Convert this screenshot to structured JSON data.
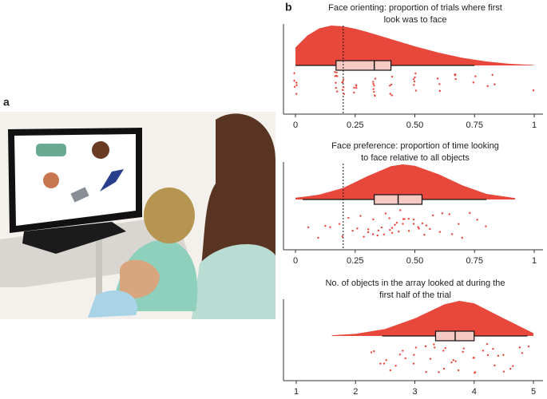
{
  "panel_labels": [
    "a",
    "b"
  ],
  "chart_data": [
    {
      "type": "raincloud",
      "color": "#e8473b",
      "title": [
        "Face orienting: proportion of trials where first",
        "look was to face"
      ],
      "xlim": [
        0,
        1
      ],
      "xticks": [
        0,
        0.25,
        {
          "value": 0.5,
          "label": "0.50"
        },
        0.75,
        1
      ],
      "reference_line": 0.2,
      "density": {
        "x": [
          0,
          0.05,
          0.1,
          0.15,
          0.2,
          0.25,
          0.3,
          0.4,
          0.5,
          0.6,
          0.7,
          0.8,
          0.9,
          1
        ],
        "y": [
          0.45,
          0.75,
          0.93,
          1,
          0.98,
          0.92,
          0.84,
          0.66,
          0.48,
          0.32,
          0.19,
          0.1,
          0.04,
          0.01
        ]
      },
      "box": {
        "whisker_low": 0,
        "q1": 0.17,
        "median": 0.33,
        "q3": 0.4,
        "whisker_high": 0.75
      },
      "points": [
        0,
        0,
        0,
        0,
        0,
        0,
        0.17,
        0.17,
        0.17,
        0.17,
        0.17,
        0.17,
        0.17,
        0.17,
        0.2,
        0.2,
        0.2,
        0.2,
        0.2,
        0.2,
        0.25,
        0.25,
        0.25,
        0.25,
        0.25,
        0.33,
        0.33,
        0.33,
        0.33,
        0.33,
        0.33,
        0.33,
        0.33,
        0.4,
        0.4,
        0.4,
        0.4,
        0.4,
        0.5,
        0.5,
        0.5,
        0.5,
        0.5,
        0.5,
        0.6,
        0.6,
        0.6,
        0.67,
        0.67,
        0.67,
        0.67,
        0.75,
        0.75,
        0.8,
        0.83,
        0.83,
        1
      ]
    },
    {
      "type": "raincloud",
      "color": "#e8473b",
      "title": [
        "Face preference: proportion of time looking",
        "to face relative to all objects"
      ],
      "xlim": [
        0,
        1
      ],
      "xticks": [
        0,
        0.25,
        {
          "value": 0.5,
          "label": "0.50"
        },
        0.75,
        1
      ],
      "reference_line": 0.2,
      "density": {
        "x": [
          0,
          0.05,
          0.1,
          0.2,
          0.3,
          0.4,
          0.45,
          0.5,
          0.6,
          0.7,
          0.8,
          0.92
        ],
        "y": [
          0.05,
          0.09,
          0.14,
          0.33,
          0.66,
          0.95,
          1,
          0.96,
          0.72,
          0.4,
          0.16,
          0.04
        ]
      },
      "box": {
        "whisker_low": 0.03,
        "q1": 0.33,
        "median": 0.43,
        "q3": 0.53,
        "whisker_high": 0.8
      },
      "points": [
        0.05,
        0.1,
        0.12,
        0.15,
        0.18,
        0.2,
        0.22,
        0.24,
        0.26,
        0.27,
        0.29,
        0.3,
        0.31,
        0.32,
        0.33,
        0.34,
        0.35,
        0.36,
        0.37,
        0.38,
        0.39,
        0.4,
        0.4,
        0.41,
        0.42,
        0.42,
        0.43,
        0.44,
        0.45,
        0.45,
        0.46,
        0.47,
        0.48,
        0.49,
        0.5,
        0.51,
        0.52,
        0.53,
        0.54,
        0.55,
        0.56,
        0.58,
        0.6,
        0.62,
        0.64,
        0.66,
        0.68,
        0.7,
        0.73,
        0.76,
        0.8
      ]
    },
    {
      "type": "raincloud",
      "color": "#e8473b",
      "title": [
        "No. of objects in the array looked at during the",
        "first half of the trial"
      ],
      "xlim": [
        1,
        5
      ],
      "xticks": [
        1,
        2,
        3,
        4,
        5
      ],
      "density": {
        "x": [
          1.6,
          2,
          2.5,
          3,
          3.5,
          3.75,
          4,
          4.5,
          5
        ],
        "y": [
          0.02,
          0.06,
          0.2,
          0.5,
          0.9,
          1,
          0.93,
          0.5,
          0.08
        ]
      },
      "box": {
        "whisker_low": 2.45,
        "q1": 3.35,
        "median": 3.68,
        "q3": 4,
        "whisker_high": 4.9
      },
      "points": [
        2.25,
        2.33,
        2.4,
        2.5,
        2.5,
        2.6,
        2.67,
        2.75,
        2.8,
        2.83,
        3,
        3,
        3,
        3.17,
        3.2,
        3.25,
        3.33,
        3.33,
        3.4,
        3.5,
        3.5,
        3.5,
        3.6,
        3.67,
        3.67,
        3.75,
        3.8,
        3.83,
        4,
        4,
        4,
        4,
        4.17,
        4.2,
        4.25,
        4.33,
        4.33,
        4.4,
        4.5,
        4.5,
        4.6,
        4.67,
        4.75,
        4.83,
        4.9
      ]
    }
  ]
}
